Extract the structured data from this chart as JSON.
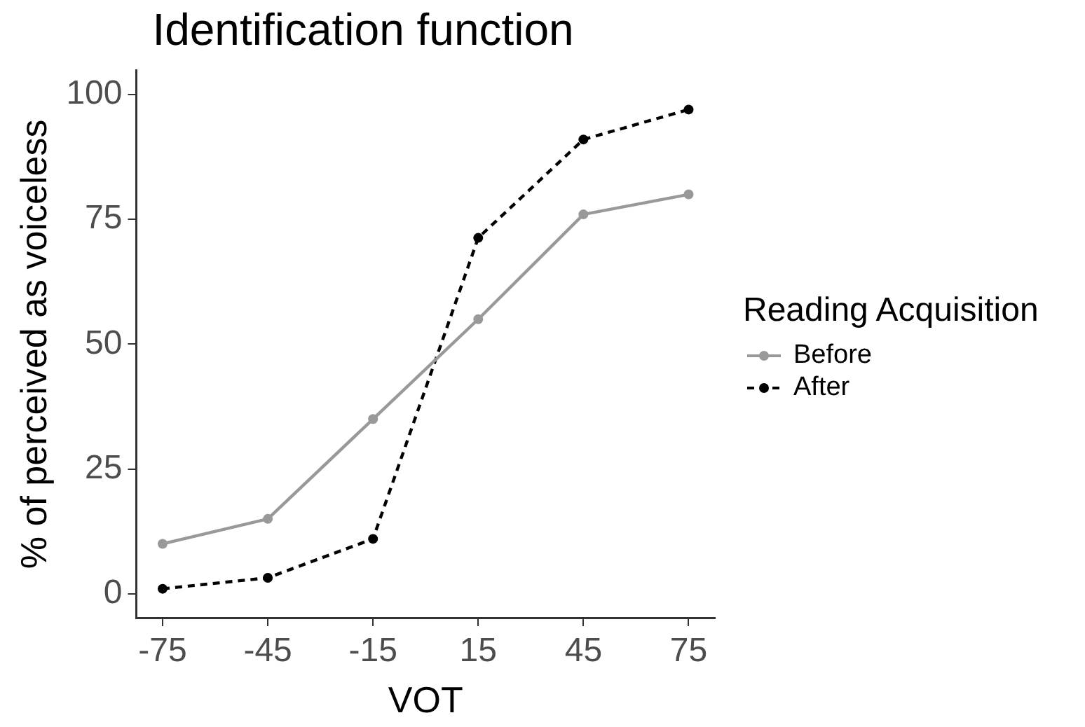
{
  "chart_data": {
    "type": "line",
    "title": "Identification function",
    "xlabel": "VOT",
    "ylabel": "% of perceived as voiceless",
    "legend_title": "Reading Acquisition",
    "x": [
      -75,
      -45,
      -15,
      15,
      45,
      75
    ],
    "series": [
      {
        "name": "Before",
        "color": "#999999",
        "values": [
          10,
          15,
          35,
          55,
          76,
          80
        ],
        "line_style": "solid"
      },
      {
        "name": "After",
        "color": "#000000",
        "values": [
          1,
          3.2,
          11,
          71.3,
          91,
          97
        ],
        "line_style": "dashed"
      }
    ],
    "xlim": [
      -82.5,
      82.5
    ],
    "xticks": [
      -75,
      -45,
      -15,
      15,
      45,
      75
    ],
    "ylim": [
      -4.8,
      104.8
    ],
    "yticks": [
      0,
      25,
      50,
      75,
      100
    ],
    "grid": false,
    "legend": "right",
    "marker": "circle"
  }
}
